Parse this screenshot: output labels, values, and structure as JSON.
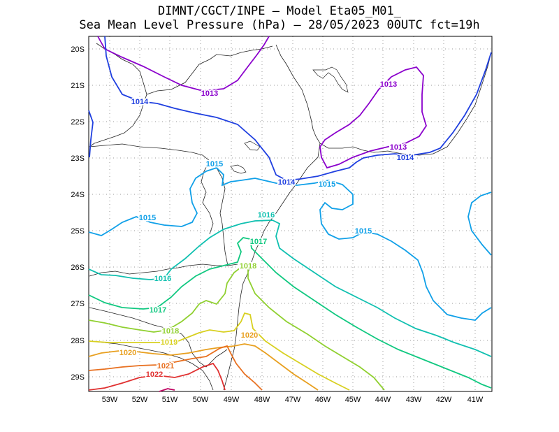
{
  "title": {
    "line1": "DIMNT/CGCT/INPE –  Model Eta05_M01_",
    "line2": "Sea Mean Level Pressure (hPa) – 28/05/2023 00UTC fct=19h"
  },
  "axes": {
    "lon_labels": [
      "53W",
      "52W",
      "51W",
      "50W",
      "49W",
      "48W",
      "47W",
      "46W",
      "45W",
      "44W",
      "43W",
      "42W",
      "41W"
    ],
    "lat_labels": [
      "20S",
      "21S",
      "22S",
      "23S",
      "24S",
      "25S",
      "26S",
      "27S",
      "28S",
      "29S"
    ]
  },
  "contours": [
    {
      "value": "1013",
      "color": "#8b00cc"
    },
    {
      "value": "1014",
      "color": "#2040e0"
    },
    {
      "value": "1015",
      "color": "#10a0e8"
    },
    {
      "value": "1016",
      "color": "#10c0b0"
    },
    {
      "value": "1017",
      "color": "#10c880"
    },
    {
      "value": "1018",
      "color": "#90d030"
    },
    {
      "value": "1019",
      "color": "#d8d020"
    },
    {
      "value": "1020",
      "color": "#e8a020"
    },
    {
      "value": "1021",
      "color": "#e87020"
    },
    {
      "value": "1022",
      "color": "#e03030"
    }
  ]
}
